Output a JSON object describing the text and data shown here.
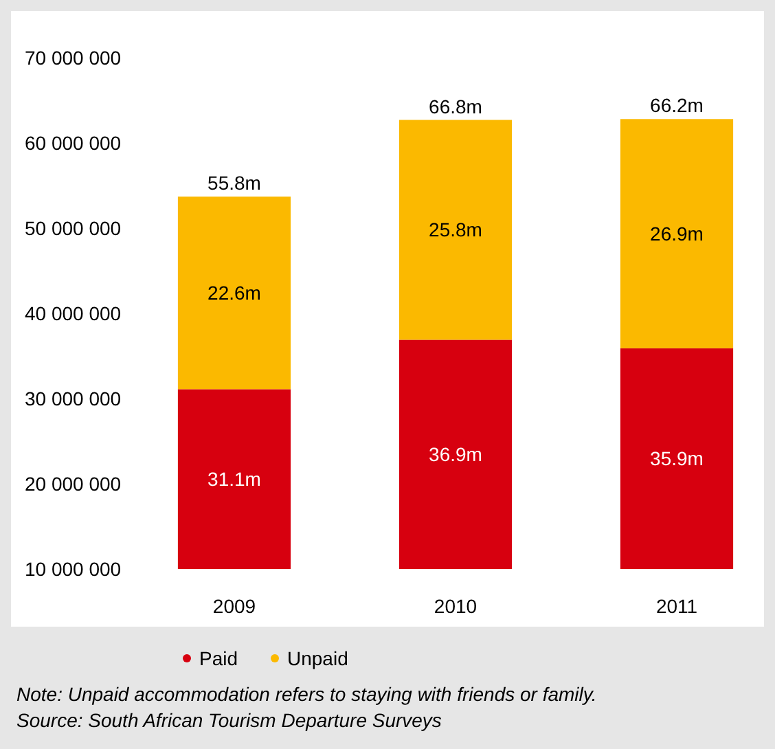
{
  "chart_data": {
    "type": "bar",
    "stacked": true,
    "categories": [
      "2009",
      "2010",
      "2011"
    ],
    "series": [
      {
        "name": "Paid",
        "color": "#d7000f",
        "values": [
          31100000,
          36900000,
          35900000
        ],
        "value_labels": [
          "31.1m",
          "36.9m",
          "35.9m"
        ]
      },
      {
        "name": "Unpaid",
        "color": "#fbb900",
        "values": [
          22600000,
          25800000,
          26900000
        ],
        "value_labels": [
          "22.6m",
          "25.8m",
          "26.9m"
        ]
      }
    ],
    "ylim": [
      10000000,
      70000000
    ],
    "yticks": [
      {
        "value": 10000000,
        "label": "10 000 000"
      },
      {
        "value": 20000000,
        "label": "20 000 000"
      },
      {
        "value": 30000000,
        "label": "30 000 000"
      },
      {
        "value": 40000000,
        "label": "40 000 000"
      },
      {
        "value": 50000000,
        "label": "50 000 000"
      },
      {
        "value": 60000000,
        "label": "60 000 000"
      },
      {
        "value": 70000000,
        "label": "70 000 000"
      }
    ],
    "grid": false,
    "legend": "bottom",
    "annotations": [
      "55.8m",
      "66.8m",
      "66.2m",
      "Note: Unpaid accommodation refers to staying with friends or family.",
      "Source: South African Tourism Departure Surveys"
    ]
  }
}
